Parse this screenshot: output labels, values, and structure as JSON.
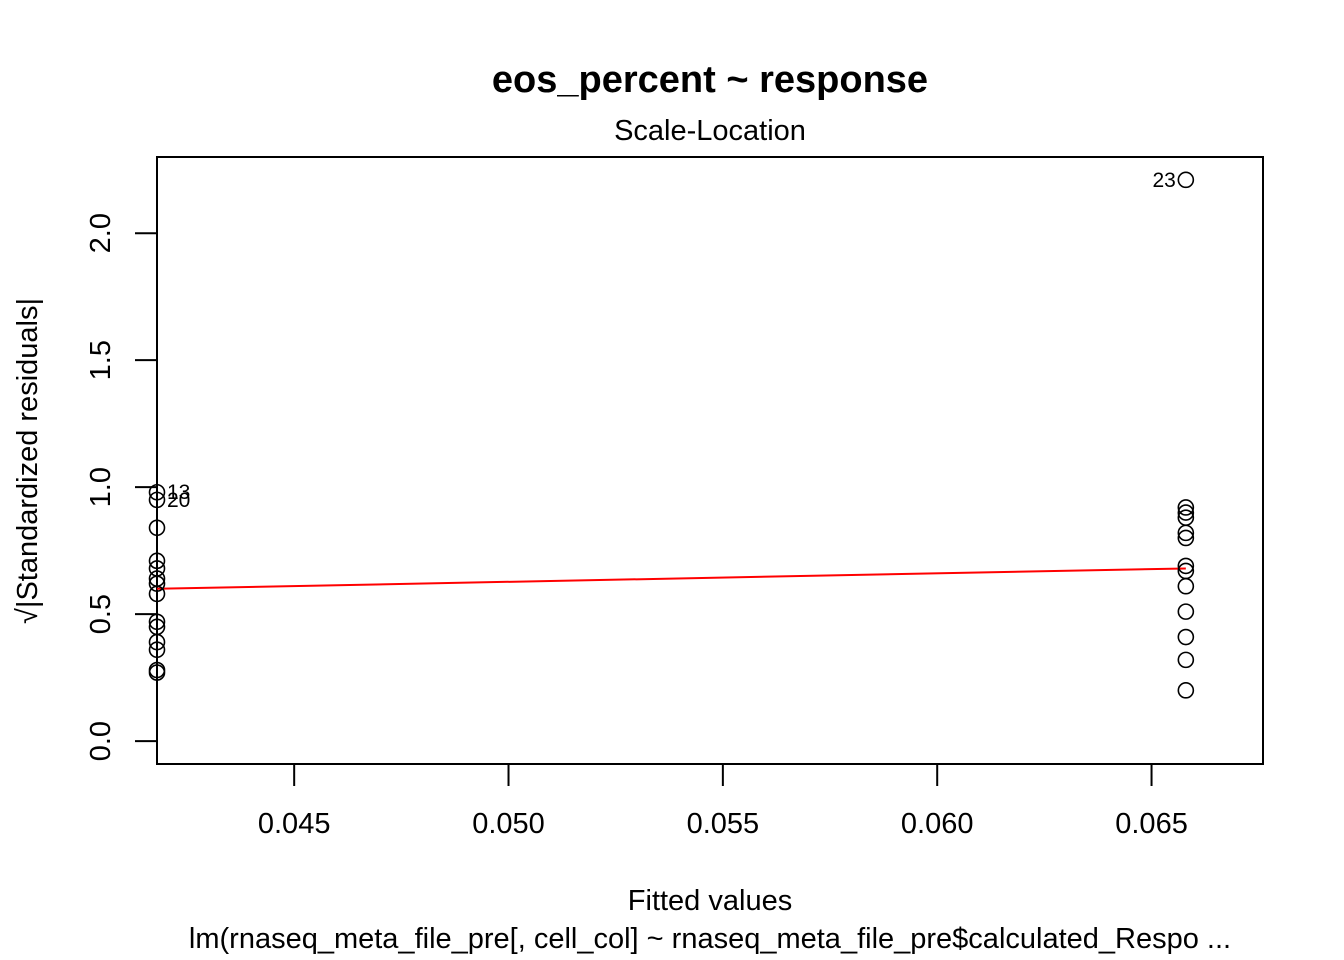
{
  "chart_data": {
    "type": "scatter",
    "title": "eos_percent ~ response",
    "subtitle": "Scale-Location",
    "xlabel": "Fitted values",
    "ylabel": "√|Standardized residuals|",
    "caption": "lm(rnaseq_meta_file_pre[, cell_col] ~ rnaseq_meta_file_pre$calculated_Respo ...",
    "xlim": [
      0.0418,
      0.0676
    ],
    "ylim": [
      -0.09,
      2.3
    ],
    "x_ticks": [
      0.045,
      0.05,
      0.055,
      0.06,
      0.065
    ],
    "x_tick_labels": [
      "0.045",
      "0.050",
      "0.055",
      "0.060",
      "0.065"
    ],
    "y_ticks": [
      0.0,
      0.5,
      1.0,
      1.5,
      2.0
    ],
    "y_tick_labels": [
      "0.0",
      "0.5",
      "1.0",
      "1.5",
      "2.0"
    ],
    "grid": false,
    "points": [
      {
        "x": 0.0418,
        "y": 0.98,
        "label": "13"
      },
      {
        "x": 0.0418,
        "y": 0.95,
        "label": "20"
      },
      {
        "x": 0.0418,
        "y": 0.84
      },
      {
        "x": 0.0418,
        "y": 0.71
      },
      {
        "x": 0.0418,
        "y": 0.68
      },
      {
        "x": 0.0418,
        "y": 0.64
      },
      {
        "x": 0.0418,
        "y": 0.62
      },
      {
        "x": 0.0418,
        "y": 0.58
      },
      {
        "x": 0.0418,
        "y": 0.47
      },
      {
        "x": 0.0418,
        "y": 0.45
      },
      {
        "x": 0.0418,
        "y": 0.39
      },
      {
        "x": 0.0418,
        "y": 0.36
      },
      {
        "x": 0.0418,
        "y": 0.28
      },
      {
        "x": 0.0418,
        "y": 0.27
      },
      {
        "x": 0.0658,
        "y": 2.21,
        "label": "23"
      },
      {
        "x": 0.0658,
        "y": 0.92
      },
      {
        "x": 0.0658,
        "y": 0.9
      },
      {
        "x": 0.0658,
        "y": 0.88
      },
      {
        "x": 0.0658,
        "y": 0.82
      },
      {
        "x": 0.0658,
        "y": 0.8
      },
      {
        "x": 0.0658,
        "y": 0.69
      },
      {
        "x": 0.0658,
        "y": 0.67
      },
      {
        "x": 0.0658,
        "y": 0.61
      },
      {
        "x": 0.0658,
        "y": 0.51
      },
      {
        "x": 0.0658,
        "y": 0.41
      },
      {
        "x": 0.0658,
        "y": 0.32
      },
      {
        "x": 0.0658,
        "y": 0.2
      }
    ],
    "smooth_line": {
      "color": "#ff0000",
      "points": [
        {
          "x": 0.0418,
          "y": 0.6
        },
        {
          "x": 0.0658,
          "y": 0.68
        }
      ]
    }
  }
}
